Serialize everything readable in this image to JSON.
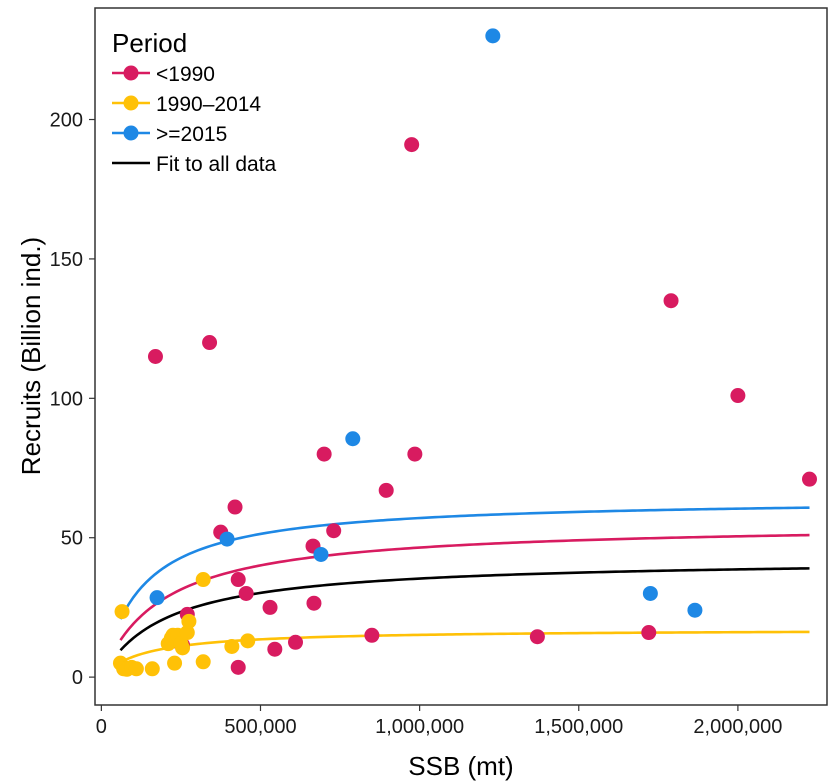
{
  "chart_data": {
    "type": "scatter",
    "xlabel": "SSB (mt)",
    "ylabel": "Recruits (Billion ind.)",
    "xlim": [
      -20000,
      2280000
    ],
    "ylim": [
      -10,
      240
    ],
    "x_ticks": [
      0,
      500000,
      1000000,
      1500000,
      2000000
    ],
    "x_tick_labels": [
      "0",
      "500,000",
      "1,000,000",
      "1,500,000",
      "2,000,000"
    ],
    "y_ticks": [
      0,
      50,
      100,
      150,
      200
    ],
    "y_tick_labels": [
      "0",
      "50",
      "100",
      "150",
      "200"
    ],
    "grid": false,
    "legend": {
      "title": "Period",
      "position": "top-left",
      "entries": [
        {
          "label": "<1990",
          "series": "<1990",
          "kind": "point-line"
        },
        {
          "label": "1990–2014",
          "series": "1990–2014",
          "kind": "point-line"
        },
        {
          "label": ">=2015",
          "series": ">=2015",
          "kind": "point-line"
        },
        {
          "label": "Fit to all data",
          "series": "Fit to all data",
          "kind": "line"
        }
      ]
    },
    "series": [
      {
        "name": "<1990",
        "color": "#d81b60",
        "points": [
          [
            170000,
            115
          ],
          [
            340000,
            120
          ],
          [
            375000,
            52
          ],
          [
            420000,
            61
          ],
          [
            430000,
            35
          ],
          [
            430000,
            3.5
          ],
          [
            455000,
            30
          ],
          [
            530000,
            25
          ],
          [
            545000,
            10
          ],
          [
            610000,
            12.5
          ],
          [
            665000,
            47
          ],
          [
            668000,
            26.5
          ],
          [
            700000,
            80
          ],
          [
            730000,
            52.5
          ],
          [
            895000,
            67
          ],
          [
            975000,
            191
          ],
          [
            985000,
            80
          ],
          [
            850000,
            15
          ],
          [
            1370000,
            14.5
          ],
          [
            1720000,
            16
          ],
          [
            1790000,
            135
          ],
          [
            2000000,
            101
          ],
          [
            2225000,
            71
          ],
          [
            255000,
            11.5
          ],
          [
            270000,
            22.5
          ],
          [
            230000,
            13
          ]
        ],
        "fit": {
          "a": 55.3,
          "b": 190000
        }
      },
      {
        "name": "1990–2014",
        "color": "#ffc107",
        "points": [
          [
            60000,
            5
          ],
          [
            65000,
            23.5
          ],
          [
            70000,
            3
          ],
          [
            80000,
            2.8
          ],
          [
            95000,
            3.5
          ],
          [
            110000,
            3
          ],
          [
            160000,
            3
          ],
          [
            210000,
            12
          ],
          [
            220000,
            14
          ],
          [
            225000,
            15
          ],
          [
            230000,
            5
          ],
          [
            240000,
            15
          ],
          [
            250000,
            12
          ],
          [
            255000,
            10.5
          ],
          [
            270000,
            16
          ],
          [
            275000,
            20
          ],
          [
            320000,
            35
          ],
          [
            320000,
            5.5
          ],
          [
            410000,
            11
          ],
          [
            460000,
            13
          ]
        ],
        "fit": {
          "a": 17.2,
          "b": 135000
        }
      },
      {
        "name": ">=2015",
        "color": "#1e88e5",
        "points": [
          [
            175000,
            28.5
          ],
          [
            395000,
            49.5
          ],
          [
            690000,
            44
          ],
          [
            790000,
            85.5
          ],
          [
            1230000,
            230
          ],
          [
            1725000,
            30
          ],
          [
            1865000,
            24
          ]
        ],
        "fit": {
          "a": 64.2,
          "b": 125000
        }
      },
      {
        "name": "Fit to all data",
        "color": "#000000",
        "points": [],
        "fit": {
          "a": 42.6,
          "b": 205000
        }
      }
    ],
    "fit_x_range": [
      60000,
      2225000
    ]
  }
}
